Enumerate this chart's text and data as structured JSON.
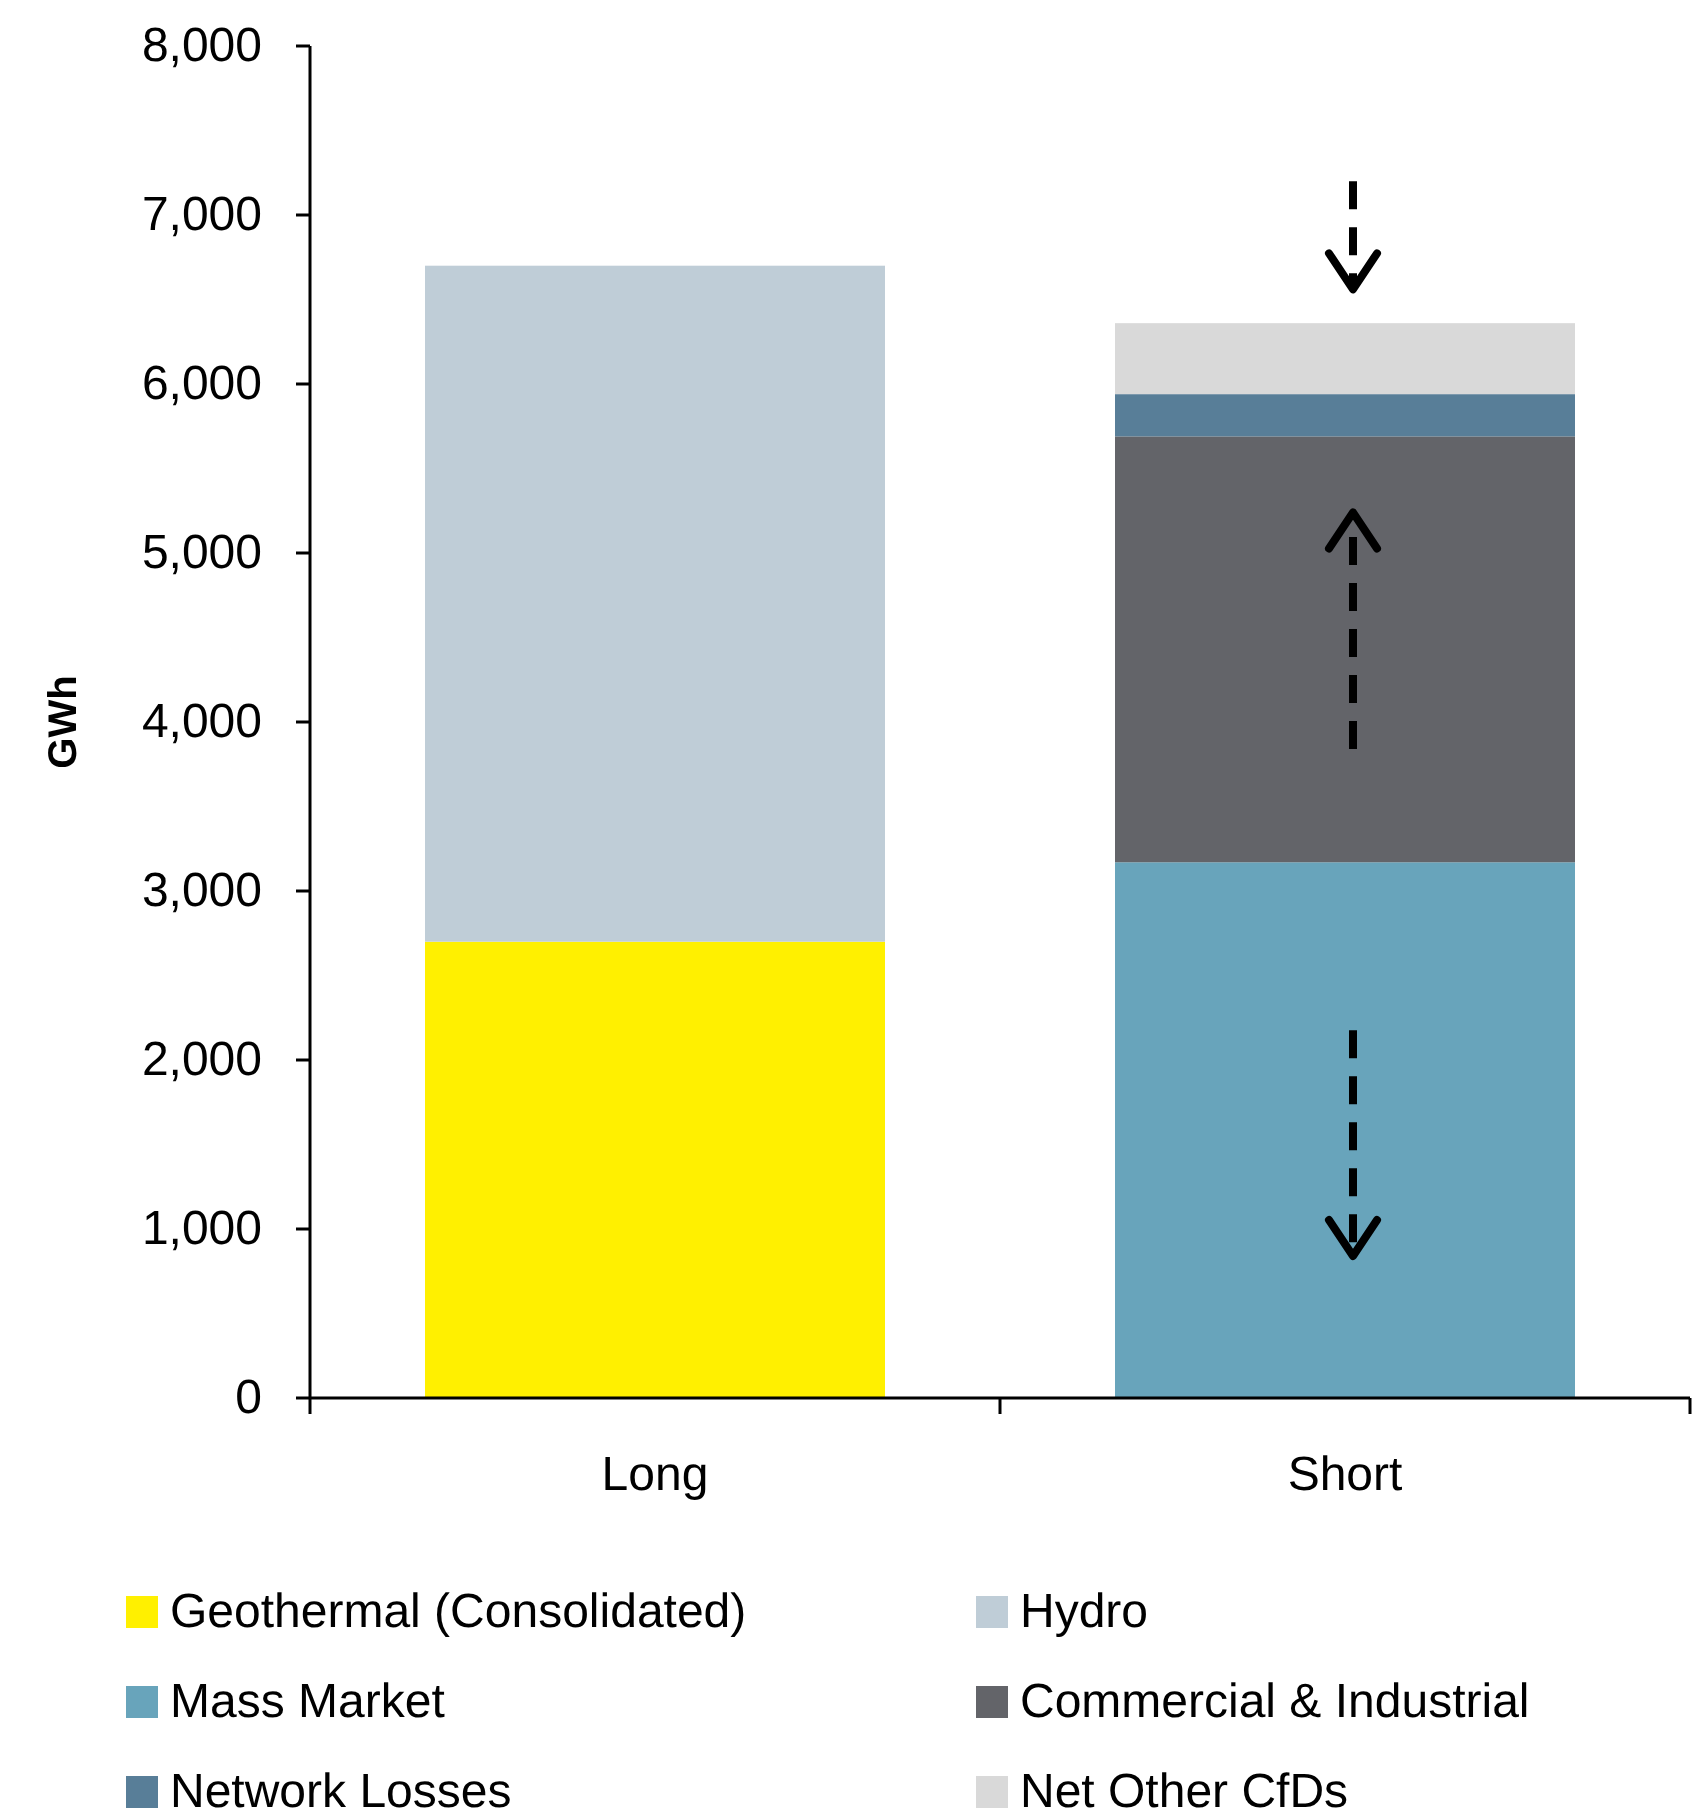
{
  "chart_data": {
    "type": "bar",
    "stacked": true,
    "ylabel": "GWh",
    "categories": [
      "Long",
      "Short"
    ],
    "ylim": [
      0,
      8000
    ],
    "yticks": [
      0,
      {
        "value": 1000,
        "label": "1,000"
      },
      {
        "value": 2000,
        "label": "2,000"
      },
      {
        "value": 3000,
        "label": "3,000"
      },
      {
        "value": 4000,
        "label": "4,000"
      },
      {
        "value": 5000,
        "label": "5,000"
      },
      {
        "value": 6000,
        "label": "6,000"
      },
      {
        "value": 7000,
        "label": "7,000"
      },
      {
        "value": 8000,
        "label": "8,000"
      }
    ],
    "grid": false,
    "legend": "bottom",
    "series": [
      {
        "name": "Geothermal (Consolidated)",
        "color": "#fff000",
        "values": [
          2700,
          0
        ]
      },
      {
        "name": "Hydro",
        "color": "#bfcdd7",
        "values": [
          4000,
          0
        ]
      },
      {
        "name": "Mass Market",
        "color": "#68a4bb",
        "values": [
          0,
          3170
        ]
      },
      {
        "name": "Commercial & Industrial",
        "color": "#636469",
        "values": [
          0,
          2520
        ]
      },
      {
        "name": "Network Losses",
        "color": "#587e98",
        "values": [
          0,
          250
        ]
      },
      {
        "name": "Net Other CfDs",
        "color": "#d9d9d9",
        "values": [
          0,
          420
        ]
      }
    ]
  }
}
